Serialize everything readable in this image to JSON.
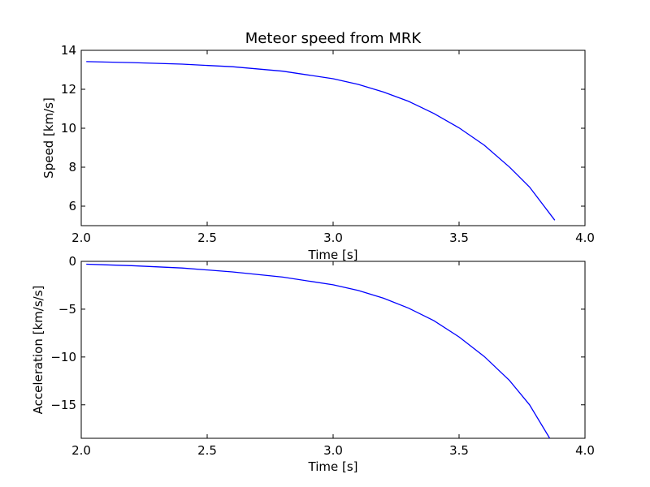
{
  "chart_data": [
    {
      "type": "line",
      "title": "Meteor speed from  MRK",
      "xlabel": "Time [s]",
      "ylabel": "Speed [km/s]",
      "xlim": [
        2.0,
        4.0
      ],
      "ylim": [
        5.0,
        14.0
      ],
      "xticks": [
        "2.0",
        "2.5",
        "3.0",
        "3.5",
        "4.0"
      ],
      "xtick_values": [
        2.0,
        2.5,
        3.0,
        3.5,
        4.0
      ],
      "yticks": [
        "6",
        "8",
        "10",
        "12",
        "14"
      ],
      "ytick_values": [
        6,
        8,
        10,
        12,
        14
      ],
      "grid": false,
      "series": [
        {
          "color": "#0000ff",
          "x": [
            2.02,
            2.2,
            2.4,
            2.6,
            2.8,
            3.0,
            3.1,
            3.2,
            3.3,
            3.4,
            3.5,
            3.6,
            3.7,
            3.78,
            3.88
          ],
          "y": [
            13.42,
            13.37,
            13.29,
            13.16,
            12.93,
            12.54,
            12.25,
            11.86,
            11.38,
            10.76,
            10.02,
            9.13,
            8.01,
            6.98,
            5.28
          ]
        }
      ]
    },
    {
      "type": "line",
      "title": "",
      "xlabel": "Time [s]",
      "ylabel": "Acceleration [km/s/s]",
      "xlim": [
        2.0,
        4.0
      ],
      "ylim": [
        -18.5,
        0.0
      ],
      "xticks": [
        "2.0",
        "2.5",
        "3.0",
        "3.5",
        "4.0"
      ],
      "xtick_values": [
        2.0,
        2.5,
        3.0,
        3.5,
        4.0
      ],
      "yticks": [
        "0",
        "−5",
        "−10",
        "−15"
      ],
      "ytick_values": [
        0,
        -5,
        -10,
        -15
      ],
      "grid": false,
      "series": [
        {
          "color": "#0000ff",
          "x": [
            2.02,
            2.2,
            2.4,
            2.6,
            2.8,
            3.0,
            3.1,
            3.2,
            3.3,
            3.4,
            3.5,
            3.6,
            3.7,
            3.78,
            3.86
          ],
          "y": [
            -0.3,
            -0.45,
            -0.7,
            -1.1,
            -1.65,
            -2.45,
            -3.05,
            -3.85,
            -4.9,
            -6.2,
            -7.9,
            -9.95,
            -12.45,
            -15.0,
            -18.5
          ]
        }
      ]
    }
  ]
}
